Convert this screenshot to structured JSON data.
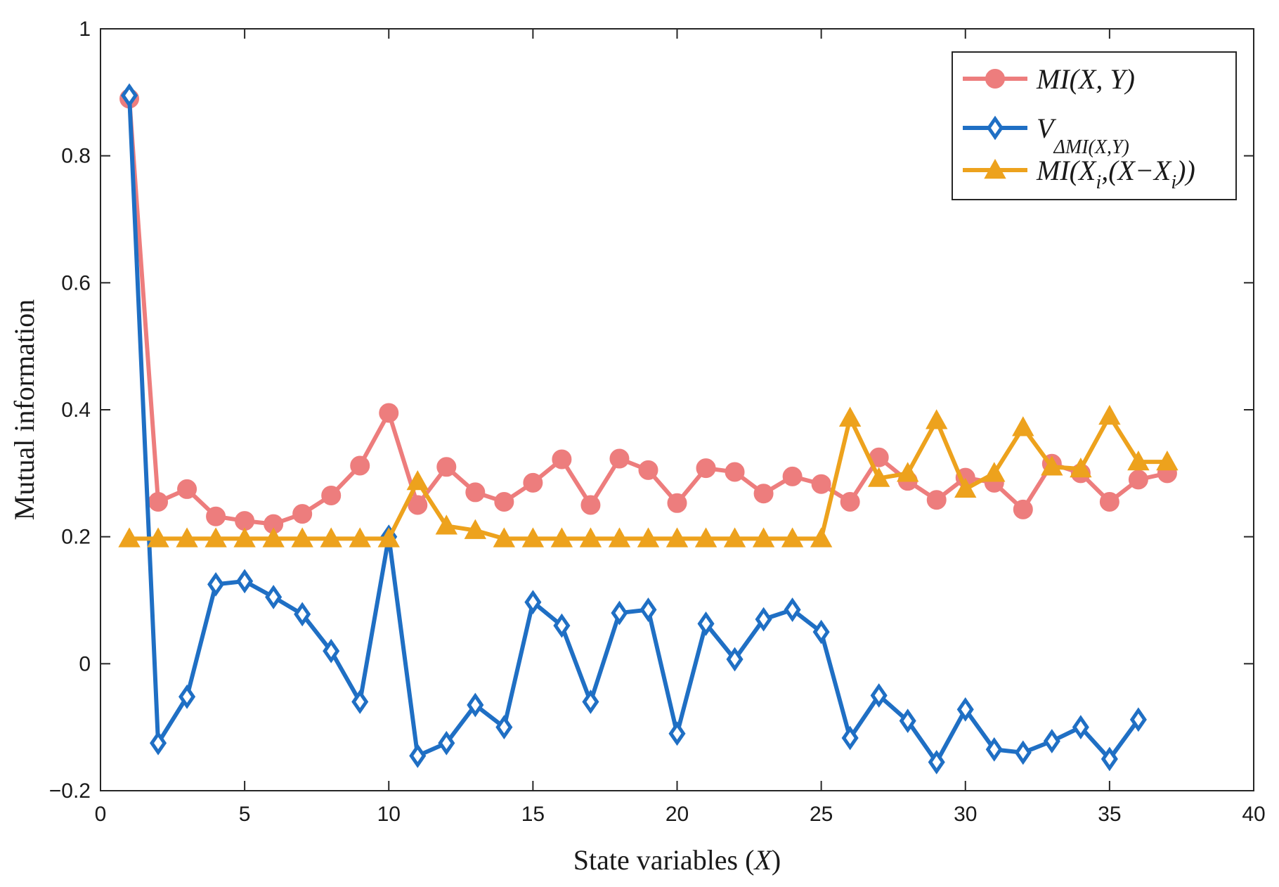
{
  "chart_data": {
    "type": "line",
    "xlabel": "State variables (X)",
    "xlabel_prefix": "State variables (",
    "xlabel_var": "X",
    "xlabel_suffix": ")",
    "ylabel": "Mutual information",
    "xlim": [
      0,
      40
    ],
    "ylim": [
      -0.2,
      1
    ],
    "xticks": [
      0,
      5,
      10,
      15,
      20,
      25,
      30,
      35,
      40
    ],
    "yticks": [
      -0.2,
      0,
      0.2,
      0.4,
      0.6,
      0.8,
      1
    ],
    "xtick_labels": [
      "0",
      "5",
      "10",
      "15",
      "20",
      "25",
      "30",
      "35",
      "40"
    ],
    "ytick_labels": [
      "−0.2",
      "0",
      "0.2",
      "0.4",
      "0.6",
      "0.8",
      "1"
    ],
    "grid": false,
    "legend_position": "top-right",
    "series": [
      {
        "name": "MI(X, Y)",
        "legend_label": "MI(X, Y)",
        "color": "#ED7D7D",
        "marker": "circle",
        "x": [
          1,
          2,
          3,
          4,
          5,
          6,
          7,
          8,
          9,
          10,
          11,
          12,
          13,
          14,
          15,
          16,
          17,
          18,
          19,
          20,
          21,
          22,
          23,
          24,
          25,
          26,
          27,
          28,
          29,
          30,
          31,
          32,
          33,
          34,
          35,
          36,
          37
        ],
        "values": [
          0.89,
          0.255,
          0.275,
          0.232,
          0.225,
          0.22,
          0.236,
          0.265,
          0.312,
          0.395,
          0.25,
          0.31,
          0.27,
          0.255,
          0.285,
          0.322,
          0.25,
          0.323,
          0.305,
          0.253,
          0.308,
          0.302,
          0.268,
          0.295,
          0.283,
          0.255,
          0.325,
          0.288,
          0.258,
          0.293,
          0.285,
          0.243,
          0.315,
          0.3,
          0.255,
          0.29,
          0.3
        ]
      },
      {
        "name": "V_ΔMI(X,Y)",
        "legend_label": "V",
        "legend_sub": "ΔMI(X,Y)",
        "color": "#1F6FC4",
        "marker": "diamond",
        "x": [
          1,
          2,
          3,
          4,
          5,
          6,
          7,
          8,
          9,
          10,
          11,
          12,
          13,
          14,
          15,
          16,
          17,
          18,
          19,
          20,
          21,
          22,
          23,
          24,
          25,
          26,
          27,
          28,
          29,
          30,
          31,
          32,
          33,
          34,
          35,
          36
        ],
        "values": [
          0.895,
          -0.125,
          -0.052,
          0.125,
          0.13,
          0.105,
          0.078,
          0.02,
          -0.06,
          0.2,
          -0.145,
          -0.125,
          -0.065,
          -0.1,
          0.097,
          0.06,
          -0.06,
          0.08,
          0.085,
          -0.11,
          0.063,
          0.007,
          0.07,
          0.085,
          0.05,
          -0.117,
          -0.05,
          -0.09,
          -0.155,
          -0.072,
          -0.135,
          -0.14,
          -0.122,
          -0.1,
          -0.15,
          -0.088
        ]
      },
      {
        "name": "MI(X_i,(X−X_i))",
        "legend_label": "MI(X",
        "legend_sub": "i",
        "legend_mid": ",(X−X",
        "legend_sub2": "i",
        "legend_end": "))",
        "color": "#EDA21D",
        "marker": "triangle",
        "x": [
          1,
          2,
          3,
          4,
          5,
          6,
          7,
          8,
          9,
          10,
          11,
          12,
          13,
          14,
          15,
          16,
          17,
          18,
          19,
          20,
          21,
          22,
          23,
          24,
          25,
          26,
          27,
          28,
          29,
          30,
          31,
          32,
          33,
          34,
          35,
          36,
          37
        ],
        "values": [
          0.197,
          0.197,
          0.197,
          0.197,
          0.197,
          0.197,
          0.197,
          0.197,
          0.197,
          0.197,
          0.287,
          0.217,
          0.21,
          0.197,
          0.197,
          0.197,
          0.197,
          0.197,
          0.197,
          0.197,
          0.197,
          0.197,
          0.197,
          0.197,
          0.197,
          0.387,
          0.292,
          0.3,
          0.383,
          0.275,
          0.3,
          0.372,
          0.31,
          0.307,
          0.39,
          0.318,
          0.318
        ]
      }
    ]
  }
}
